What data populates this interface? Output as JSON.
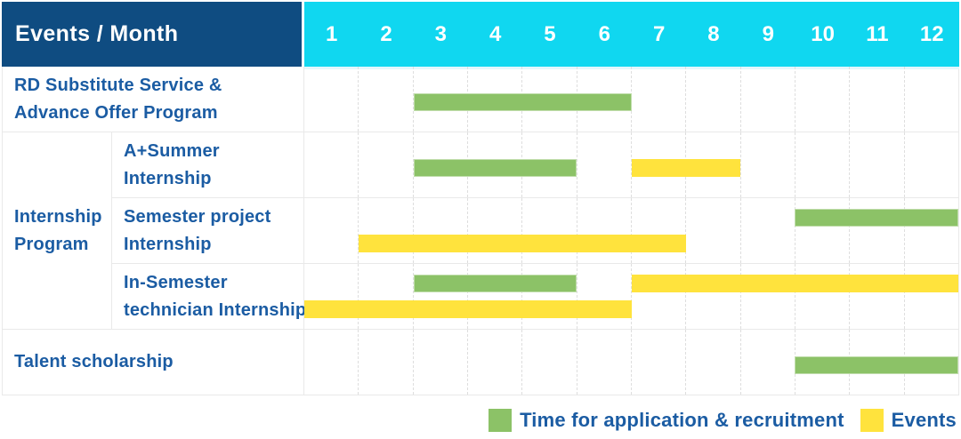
{
  "header": {
    "title": "Events / Month",
    "months": [
      "1",
      "2",
      "3",
      "4",
      "5",
      "6",
      "7",
      "8",
      "9",
      "10",
      "11",
      "12"
    ]
  },
  "colors": {
    "header_bg": "#0f4c81",
    "month_header_bg": "#10d7f0",
    "application_green": "#8cc267",
    "events_yellow": "#ffe33d",
    "label_text": "#1b5ca3"
  },
  "chart_data": {
    "type": "gantt",
    "title": "Events / Month",
    "x_axis": {
      "unit": "month",
      "ticks": [
        "1",
        "2",
        "3",
        "4",
        "5",
        "6",
        "7",
        "8",
        "9",
        "10",
        "11",
        "12"
      ],
      "range": [
        1,
        12
      ]
    },
    "series_legend": [
      {
        "key": "application",
        "color": "#8cc267",
        "label": "Time for application & recruitment"
      },
      {
        "key": "events",
        "color": "#ffe33d",
        "label": "Events"
      }
    ],
    "groups": [
      {
        "group_label": null,
        "rows": [
          {
            "label": "RD Substitute Service & Advance Offer Program",
            "label_lines": [
              "RD Substitute Service &",
              "Advance Offer Program"
            ],
            "bars": [
              {
                "series": "application",
                "start_month": 3,
                "end_month": 6,
                "lane": "single"
              }
            ]
          }
        ]
      },
      {
        "group_label": "Internship Program",
        "group_label_lines": [
          "Internship",
          "Program"
        ],
        "rows": [
          {
            "label": "A+Summer Internship",
            "label_lines": [
              "A+Summer",
              "Internship"
            ],
            "bars": [
              {
                "series": "application",
                "start_month": 3,
                "end_month": 5,
                "lane": "single"
              },
              {
                "series": "events",
                "start_month": 7,
                "end_month": 8,
                "lane": "single"
              }
            ]
          },
          {
            "label": "Semester project Internship",
            "label_lines": [
              "Semester project",
              "Internship"
            ],
            "bars": [
              {
                "series": "application",
                "start_month": 10,
                "end_month": 12,
                "lane": "top"
              },
              {
                "series": "events",
                "start_month": 2,
                "end_month": 7,
                "lane": "bottom"
              }
            ]
          },
          {
            "label": "In-Semester technician Internship",
            "label_lines": [
              "In-Semester",
              "technician Internship"
            ],
            "bars": [
              {
                "series": "application",
                "start_month": 3,
                "end_month": 5,
                "lane": "top"
              },
              {
                "series": "events",
                "start_month": 7,
                "end_month": 12,
                "lane": "top"
              },
              {
                "series": "events",
                "start_month": 1,
                "end_month": 6,
                "lane": "bottom"
              }
            ]
          }
        ]
      },
      {
        "group_label": null,
        "rows": [
          {
            "label": "Talent scholarship",
            "label_lines": [
              "Talent scholarship"
            ],
            "bars": [
              {
                "series": "application",
                "start_month": 10,
                "end_month": 12,
                "lane": "single"
              }
            ]
          }
        ]
      }
    ]
  }
}
